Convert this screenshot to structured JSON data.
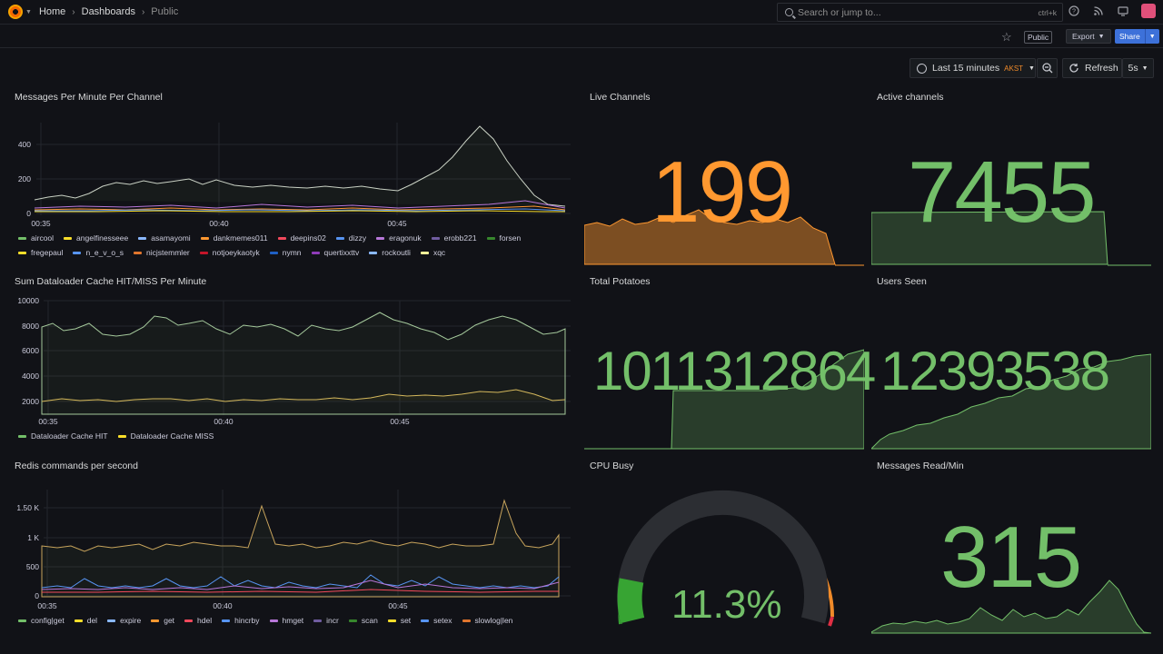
{
  "breadcrumb": {
    "home": "Home",
    "dashboards": "Dashboards",
    "current": "Public"
  },
  "search": {
    "placeholder": "Search or jump to...",
    "shortcut": "ctrl+k"
  },
  "toolbar": {
    "public_badge": "Public",
    "export_label": "Export",
    "share_label": "Share"
  },
  "time": {
    "range_label": "Last 15 minutes",
    "timezone": "AKST",
    "refresh_label": "Refresh",
    "interval": "5s"
  },
  "panels": {
    "messages": {
      "title": "Messages Per Minute Per Channel",
      "y_ticks": [
        "0",
        "200",
        "400"
      ],
      "x_ticks": [
        "00:35",
        "00:40",
        "00:45"
      ],
      "legend": [
        {
          "name": "aircool",
          "color": "#73bf69"
        },
        {
          "name": "angelfinesseee",
          "color": "#fade2a"
        },
        {
          "name": "asamayomi",
          "color": "#8ab8ff"
        },
        {
          "name": "dankmemes011",
          "color": "#ff9830"
        },
        {
          "name": "deepins02",
          "color": "#f2495c"
        },
        {
          "name": "dizzy",
          "color": "#5794f2"
        },
        {
          "name": "eragonuk",
          "color": "#b877d9"
        },
        {
          "name": "erobb221",
          "color": "#705da0"
        },
        {
          "name": "forsen",
          "color": "#37872d"
        },
        {
          "name": "fregepaul",
          "color": "#fade2a"
        },
        {
          "name": "n_e_v_o_s",
          "color": "#5794f2"
        },
        {
          "name": "nicjstemmler",
          "color": "#e0752d"
        },
        {
          "name": "notjoeykaotyk",
          "color": "#c4162a"
        },
        {
          "name": "nymn",
          "color": "#1f60c4"
        },
        {
          "name": "quertixxttv",
          "color": "#8f3bb8"
        },
        {
          "name": "rockoutli",
          "color": "#8ab8ff"
        },
        {
          "name": "xqc",
          "color": "#fff899"
        }
      ]
    },
    "dataloader": {
      "title": "Sum Dataloader Cache HIT/MISS Per Minute",
      "y_ticks": [
        "2000",
        "4000",
        "6000",
        "8000",
        "10000"
      ],
      "x_ticks": [
        "00:35",
        "00:40",
        "00:45"
      ],
      "legend": [
        {
          "name": "Dataloader Cache HIT",
          "color": "#73bf69"
        },
        {
          "name": "Dataloader Cache MISS",
          "color": "#fade2a"
        }
      ]
    },
    "redis": {
      "title": "Redis commands per second",
      "y_ticks": [
        "0",
        "500",
        "1 K",
        "1.50 K"
      ],
      "x_ticks": [
        "00:35",
        "00:40",
        "00:45"
      ],
      "legend": [
        {
          "name": "config|get",
          "color": "#73bf69"
        },
        {
          "name": "del",
          "color": "#fade2a"
        },
        {
          "name": "expire",
          "color": "#8ab8ff"
        },
        {
          "name": "get",
          "color": "#ff9830"
        },
        {
          "name": "hdel",
          "color": "#f2495c"
        },
        {
          "name": "hincrby",
          "color": "#5794f2"
        },
        {
          "name": "hmget",
          "color": "#b877d9"
        },
        {
          "name": "incr",
          "color": "#705da0"
        },
        {
          "name": "scan",
          "color": "#37872d"
        },
        {
          "name": "set",
          "color": "#fade2a"
        },
        {
          "name": "setex",
          "color": "#5794f2"
        },
        {
          "name": "slowlog|len",
          "color": "#e0752d"
        }
      ]
    },
    "live_channels": {
      "title": "Live Channels",
      "value": "199"
    },
    "active_channels": {
      "title": "Active channels",
      "value": "7455"
    },
    "total_potatoes": {
      "title": "Total Potatoes",
      "value": "1011312864"
    },
    "users_seen": {
      "title": "Users Seen",
      "value": "12393538"
    },
    "cpu_busy": {
      "title": "CPU Busy",
      "value": "11.3%",
      "percent": 11.3
    },
    "messages_read": {
      "title": "Messages Read/Min",
      "value": "315"
    }
  },
  "colors": {
    "green": "#73bf69",
    "orange": "#ff9830",
    "red": "#f2495c",
    "bg": "#111217"
  }
}
